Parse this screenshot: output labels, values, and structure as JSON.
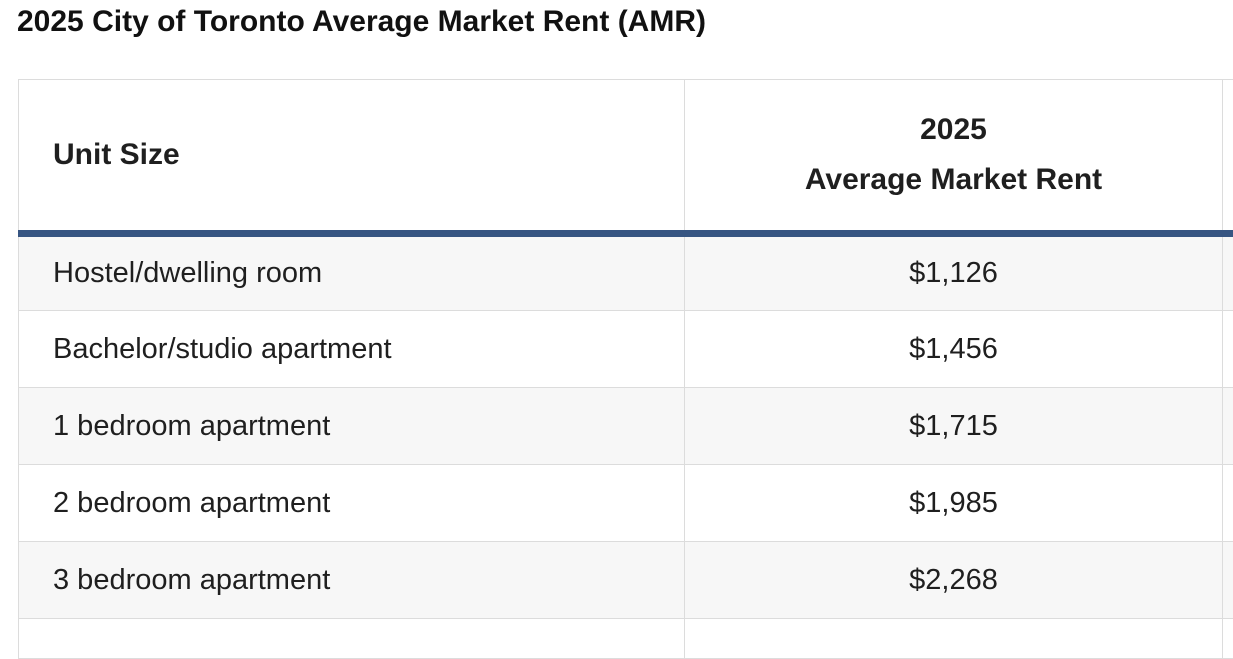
{
  "page": {
    "title": "2025 City of Toronto Average Market Rent (AMR)"
  },
  "table": {
    "columns": [
      {
        "label": "Unit Size"
      },
      {
        "label_lines": [
          "2025",
          "Average Market Rent"
        ]
      }
    ],
    "rows": [
      {
        "unit_size": "Hostel/dwelling room",
        "rent": "$1,126"
      },
      {
        "unit_size": "Bachelor/studio apartment",
        "rent": "$1,456"
      },
      {
        "unit_size": "1 bedroom apartment",
        "rent": "$1,715"
      },
      {
        "unit_size": "2 bedroom apartment",
        "rent": "$1,985"
      },
      {
        "unit_size": "3 bedroom apartment",
        "rent": "$2,268"
      }
    ]
  },
  "chart_data": {
    "type": "table",
    "title": "2025 City of Toronto Average Market Rent (AMR)",
    "columns": [
      "Unit Size",
      "2025 Average Market Rent"
    ],
    "rows": [
      [
        "Hostel/dwelling room",
        "$1,126"
      ],
      [
        "Bachelor/studio apartment",
        "$1,456"
      ],
      [
        "1 bedroom apartment",
        "$1,715"
      ],
      [
        "2 bedroom apartment",
        "$1,985"
      ],
      [
        "3 bedroom apartment",
        "$2,268"
      ]
    ],
    "values_numeric": [
      1126,
      1456,
      1715,
      1985,
      2268
    ]
  },
  "colors": {
    "header_accent_border": "#375582",
    "cell_border": "#dcdcdc",
    "row_alt_background": "#f7f7f7",
    "text": "#1f1f1f"
  }
}
